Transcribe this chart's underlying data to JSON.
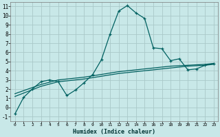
{
  "xlabel": "Humidex (Indice chaleur)",
  "background_color": "#c8e8e8",
  "grid_color": "#aac8c8",
  "line_color": "#006060",
  "xlim": [
    -0.5,
    23.5
  ],
  "ylim": [
    -1.5,
    11.5
  ],
  "xticks": [
    0,
    1,
    2,
    3,
    4,
    5,
    6,
    7,
    8,
    9,
    10,
    11,
    12,
    13,
    14,
    15,
    16,
    17,
    18,
    19,
    20,
    21,
    22,
    23
  ],
  "yticks": [
    -1,
    0,
    1,
    2,
    3,
    4,
    5,
    6,
    7,
    8,
    9,
    10,
    11
  ],
  "line1_x": [
    0,
    1,
    2,
    3,
    4,
    5,
    6,
    7,
    8,
    9,
    10,
    11,
    12,
    13,
    14,
    15,
    16,
    17,
    18,
    19,
    20,
    21,
    22,
    23
  ],
  "line1_y": [
    -0.7,
    1.1,
    2.0,
    2.8,
    3.0,
    2.8,
    1.3,
    1.9,
    2.7,
    3.6,
    5.2,
    8.0,
    10.5,
    11.1,
    10.3,
    9.7,
    6.5,
    6.4,
    5.1,
    5.3,
    4.1,
    4.2,
    4.6,
    4.8
  ],
  "line2_x": [
    0,
    3,
    5,
    8,
    10,
    12,
    14,
    16,
    18,
    20,
    22,
    23
  ],
  "line2_y": [
    1.5,
    2.5,
    3.0,
    3.3,
    3.6,
    3.9,
    4.1,
    4.3,
    4.5,
    4.6,
    4.7,
    4.8
  ],
  "line3_x": [
    0,
    3,
    5,
    8,
    10,
    12,
    14,
    16,
    18,
    20,
    22,
    23
  ],
  "line3_y": [
    1.2,
    2.3,
    2.8,
    3.1,
    3.4,
    3.7,
    3.9,
    4.1,
    4.3,
    4.5,
    4.6,
    4.7
  ]
}
